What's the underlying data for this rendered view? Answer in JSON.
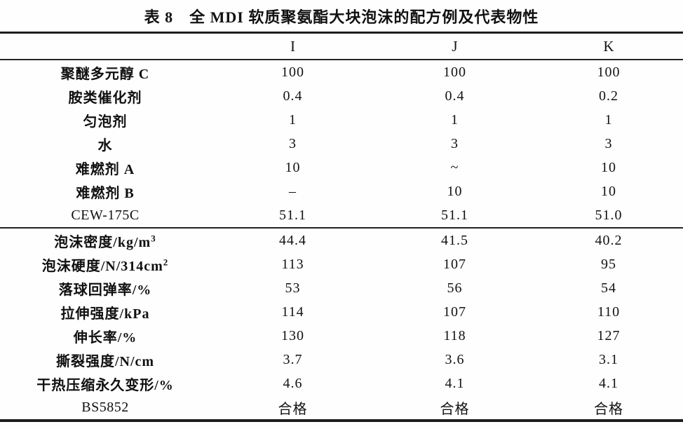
{
  "table": {
    "title": "表 8　全 MDI 软质聚氨酯大块泡沫的配方例及代表物性",
    "columns": [
      "I",
      "J",
      "K"
    ],
    "sections": [
      {
        "name": "formulation",
        "rows": [
          {
            "label": "聚醚多元醇 C",
            "sup": "",
            "latin": false,
            "values": [
              "100",
              "100",
              "100"
            ]
          },
          {
            "label": "胺类催化剂",
            "sup": "",
            "latin": false,
            "values": [
              "0.4",
              "0.4",
              "0.2"
            ]
          },
          {
            "label": "匀泡剂",
            "sup": "",
            "latin": false,
            "values": [
              "1",
              "1",
              "1"
            ]
          },
          {
            "label": "水",
            "sup": "",
            "latin": false,
            "values": [
              "3",
              "3",
              "3"
            ]
          },
          {
            "label": "难燃剂 A",
            "sup": "",
            "latin": false,
            "values": [
              "10",
              "~",
              "10"
            ]
          },
          {
            "label": "难燃剂 B",
            "sup": "",
            "latin": false,
            "values": [
              "–",
              "10",
              "10"
            ]
          },
          {
            "label": "CEW-175C",
            "sup": "",
            "latin": true,
            "values": [
              "51.1",
              "51.1",
              "51.0"
            ]
          }
        ]
      },
      {
        "name": "properties",
        "rows": [
          {
            "label": "泡沫密度/kg/m",
            "sup": "3",
            "latin": false,
            "values": [
              "44.4",
              "41.5",
              "40.2"
            ]
          },
          {
            "label": "泡沫硬度/N/314cm",
            "sup": "2",
            "latin": false,
            "values": [
              "113",
              "107",
              "95"
            ]
          },
          {
            "label": "落球回弹率/%",
            "sup": "",
            "latin": false,
            "values": [
              "53",
              "56",
              "54"
            ]
          },
          {
            "label": "拉伸强度/kPa",
            "sup": "",
            "latin": false,
            "values": [
              "114",
              "107",
              "110"
            ]
          },
          {
            "label": "伸长率/%",
            "sup": "",
            "latin": false,
            "values": [
              "130",
              "118",
              "127"
            ]
          },
          {
            "label": "撕裂强度/N/cm",
            "sup": "",
            "latin": false,
            "values": [
              "3.7",
              "3.6",
              "3.1"
            ]
          },
          {
            "label": "干热压缩永久变形/%",
            "sup": "",
            "latin": false,
            "values": [
              "4.6",
              "4.1",
              "4.1"
            ]
          },
          {
            "label": "BS5852",
            "sup": "",
            "latin": true,
            "values": [
              "合格",
              "合格",
              "合格"
            ]
          }
        ]
      }
    ]
  }
}
